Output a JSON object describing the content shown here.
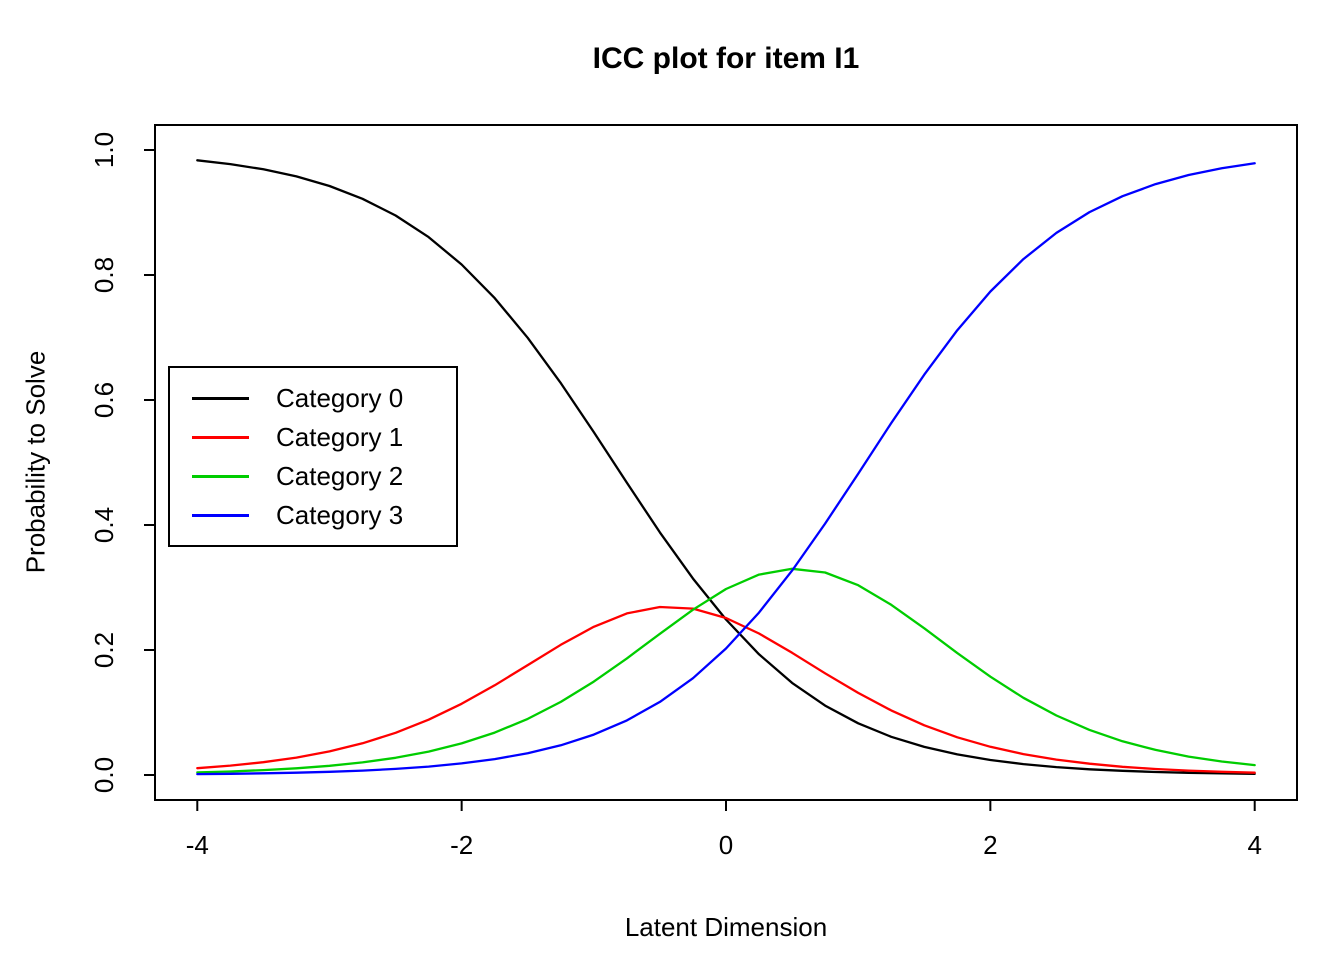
{
  "title": "ICC plot for item I1",
  "axes": {
    "x_label": "Latent Dimension",
    "y_label": "Probability to Solve",
    "x_ticks": [
      -4,
      -2,
      0,
      2,
      4
    ],
    "x_tick_labels": [
      "-4",
      "-2",
      "0",
      "2",
      "4"
    ],
    "y_ticks": [
      0,
      0.2,
      0.4,
      0.6,
      0.8,
      1
    ],
    "y_tick_labels": [
      "0.0",
      "0.2",
      "0.4",
      "0.6",
      "0.8",
      "1.0"
    ]
  },
  "chart_data": {
    "type": "line",
    "title": "ICC plot for item I1",
    "xlabel": "Latent Dimension",
    "ylabel": "Probability to Solve",
    "xlim": [
      -4,
      4
    ],
    "ylim": [
      0,
      1
    ],
    "grid": false,
    "legend_position": "middle-left",
    "x": [
      -4,
      -3.75,
      -3.5,
      -3.25,
      -3,
      -2.75,
      -2.5,
      -2.25,
      -2,
      -1.75,
      -1.5,
      -1.25,
      -1,
      -0.75,
      -0.5,
      -0.25,
      0,
      0.25,
      0.5,
      0.75,
      1,
      1.25,
      1.5,
      1.75,
      2,
      2.25,
      2.5,
      2.75,
      3,
      3.25,
      3.5,
      3.75,
      4
    ],
    "series": [
      {
        "name": "Category 0",
        "color": "#000000",
        "values": [
          0.9836,
          0.9775,
          0.9691,
          0.9577,
          0.9424,
          0.922,
          0.8952,
          0.8606,
          0.8168,
          0.7631,
          0.6995,
          0.6271,
          0.5486,
          0.4675,
          0.3882,
          0.3143,
          0.2488,
          0.1931,
          0.1474,
          0.1111,
          0.0828,
          0.0612,
          0.045,
          0.0329,
          0.024,
          0.0175,
          0.0127,
          0.0092,
          0.0067,
          0.0048,
          0.0035,
          0.0025,
          0.0018
        ]
      },
      {
        "name": "Category 1",
        "color": "#FF0000",
        "values": [
          0.0109,
          0.015,
          0.0205,
          0.0279,
          0.0378,
          0.0507,
          0.0675,
          0.0885,
          0.114,
          0.1436,
          0.1759,
          0.2083,
          0.2372,
          0.2586,
          0.2688,
          0.2662,
          0.2512,
          0.2264,
          0.1956,
          0.1628,
          0.1314,
          0.1033,
          0.0796,
          0.0603,
          0.0451,
          0.0335,
          0.0246,
          0.0181,
          0.0132,
          0.0096,
          0.007,
          0.0051,
          0.0037
        ]
      },
      {
        "name": "Category 2",
        "color": "#00CD00",
        "values": [
          0.0041,
          0.0056,
          0.0078,
          0.0107,
          0.0147,
          0.0202,
          0.0276,
          0.0375,
          0.0506,
          0.0678,
          0.0897,
          0.1169,
          0.1495,
          0.1865,
          0.226,
          0.2645,
          0.2976,
          0.3207,
          0.33,
          0.324,
          0.3037,
          0.2724,
          0.2347,
          0.1951,
          0.1573,
          0.1236,
          0.0952,
          0.0722,
          0.054,
          0.0401,
          0.0295,
          0.0216,
          0.0158
        ]
      },
      {
        "name": "Category 3",
        "color": "#0000FF",
        "values": [
          0.0014,
          0.0019,
          0.0027,
          0.0037,
          0.0051,
          0.0071,
          0.0097,
          0.0134,
          0.0185,
          0.0254,
          0.0348,
          0.0476,
          0.0647,
          0.0873,
          0.117,
          0.1549,
          0.2024,
          0.2599,
          0.3271,
          0.4022,
          0.4821,
          0.563,
          0.6407,
          0.7117,
          0.7736,
          0.8255,
          0.8674,
          0.9006,
          0.9261,
          0.9455,
          0.96,
          0.9708,
          0.9787
        ]
      }
    ]
  }
}
